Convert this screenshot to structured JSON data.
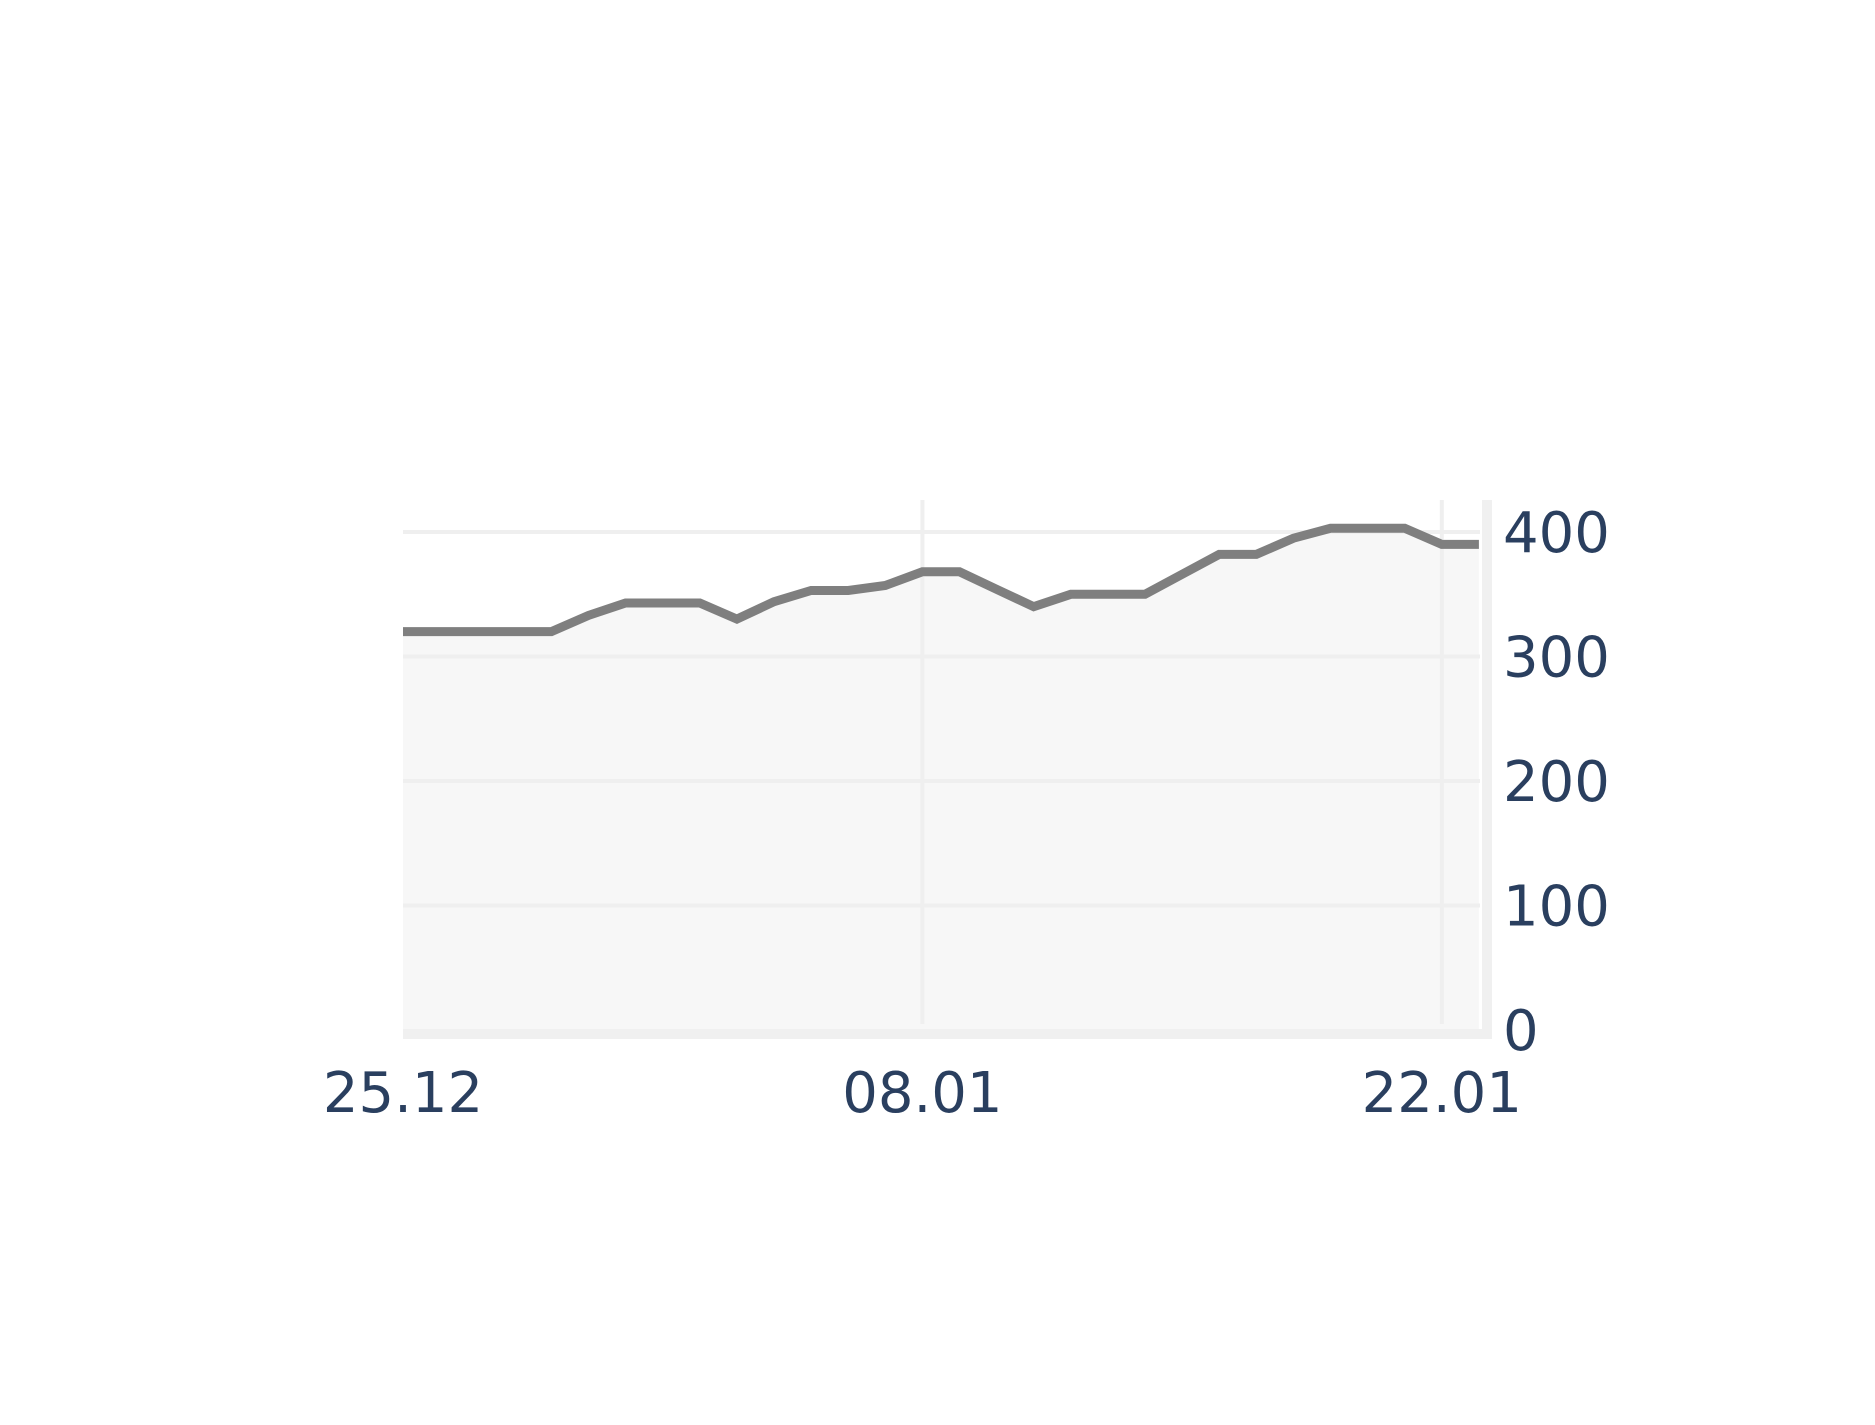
{
  "chart_data": {
    "type": "area",
    "x": [
      "25.12",
      "26.12",
      "27.12",
      "28.12",
      "29.12",
      "30.12",
      "31.12",
      "01.01",
      "02.01",
      "03.01",
      "04.01",
      "05.01",
      "06.01",
      "07.01",
      "08.01",
      "09.01",
      "10.01",
      "11.01",
      "12.01",
      "13.01",
      "14.01",
      "15.01",
      "16.01",
      "17.01",
      "18.01",
      "19.01",
      "20.01",
      "21.01",
      "22.01",
      "23.01"
    ],
    "series": [
      {
        "values": [
          320,
          320,
          320,
          320,
          320,
          333,
          343,
          343,
          343,
          330,
          344,
          353,
          353,
          357,
          368,
          368,
          354,
          340,
          350,
          350,
          350,
          366,
          382,
          382,
          395,
          403,
          403,
          403,
          390,
          390
        ]
      }
    ],
    "xticks": [
      "25.12",
      "08.01",
      "22.01"
    ],
    "yticks": [
      0,
      100,
      200,
      300,
      400
    ],
    "ylim": [
      0,
      425
    ],
    "yaxis_side": "right",
    "grid": true,
    "colors": {
      "line": "#7f7f7f",
      "fill": "#f7f7f7",
      "grid": "#efefef",
      "axis": "#f0f0f0",
      "tick_text": "#2a3f5f"
    }
  }
}
